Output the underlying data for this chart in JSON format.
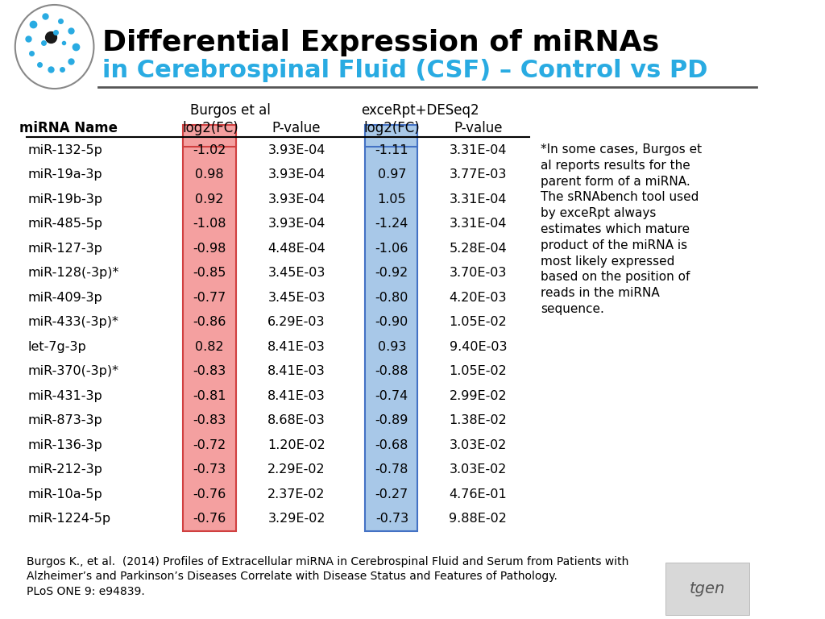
{
  "title_line1": "Differential Expression of miRNAs",
  "title_line2": "in Cerebrospinal Fluid (CSF) – Control vs PD",
  "title_color1": "#000000",
  "title_color2": "#29ABE2",
  "col_headers_burgos": "Burgos et al",
  "col_headers_excerpt": "exceRpt+DESeq2",
  "rows": [
    [
      "miR-132-5p",
      "-1.02",
      "3.93E-04",
      "-1.11",
      "3.31E-04"
    ],
    [
      "miR-19a-3p",
      "0.98",
      "3.93E-04",
      "0.97",
      "3.77E-03"
    ],
    [
      "miR-19b-3p",
      "0.92",
      "3.93E-04",
      "1.05",
      "3.31E-04"
    ],
    [
      "miR-485-5p",
      "-1.08",
      "3.93E-04",
      "-1.24",
      "3.31E-04"
    ],
    [
      "miR-127-3p",
      "-0.98",
      "4.48E-04",
      "-1.06",
      "5.28E-04"
    ],
    [
      "miR-128(-3p)*",
      "-0.85",
      "3.45E-03",
      "-0.92",
      "3.70E-03"
    ],
    [
      "miR-409-3p",
      "-0.77",
      "3.45E-03",
      "-0.80",
      "4.20E-03"
    ],
    [
      "miR-433(-3p)*",
      "-0.86",
      "6.29E-03",
      "-0.90",
      "1.05E-02"
    ],
    [
      "let-7g-3p",
      "0.82",
      "8.41E-03",
      "0.93",
      "9.40E-03"
    ],
    [
      "miR-370(-3p)*",
      "-0.83",
      "8.41E-03",
      "-0.88",
      "1.05E-02"
    ],
    [
      "miR-431-3p",
      "-0.81",
      "8.41E-03",
      "-0.74",
      "2.99E-02"
    ],
    [
      "miR-873-3p",
      "-0.83",
      "8.68E-03",
      "-0.89",
      "1.38E-02"
    ],
    [
      "miR-136-3p",
      "-0.72",
      "1.20E-02",
      "-0.68",
      "3.03E-02"
    ],
    [
      "miR-212-3p",
      "-0.73",
      "2.29E-02",
      "-0.78",
      "3.03E-02"
    ],
    [
      "miR-10a-5p",
      "-0.76",
      "2.37E-02",
      "-0.27",
      "4.76E-01"
    ],
    [
      "miR-1224-5p",
      "-0.76",
      "3.29E-02",
      "-0.73",
      "9.88E-02"
    ]
  ],
  "bg_color": "#FFFFFF",
  "pink_bg": "#F4A0A0",
  "blue_bg": "#A8C8E8",
  "border_pink": "#D04040",
  "border_blue": "#4472C4"
}
